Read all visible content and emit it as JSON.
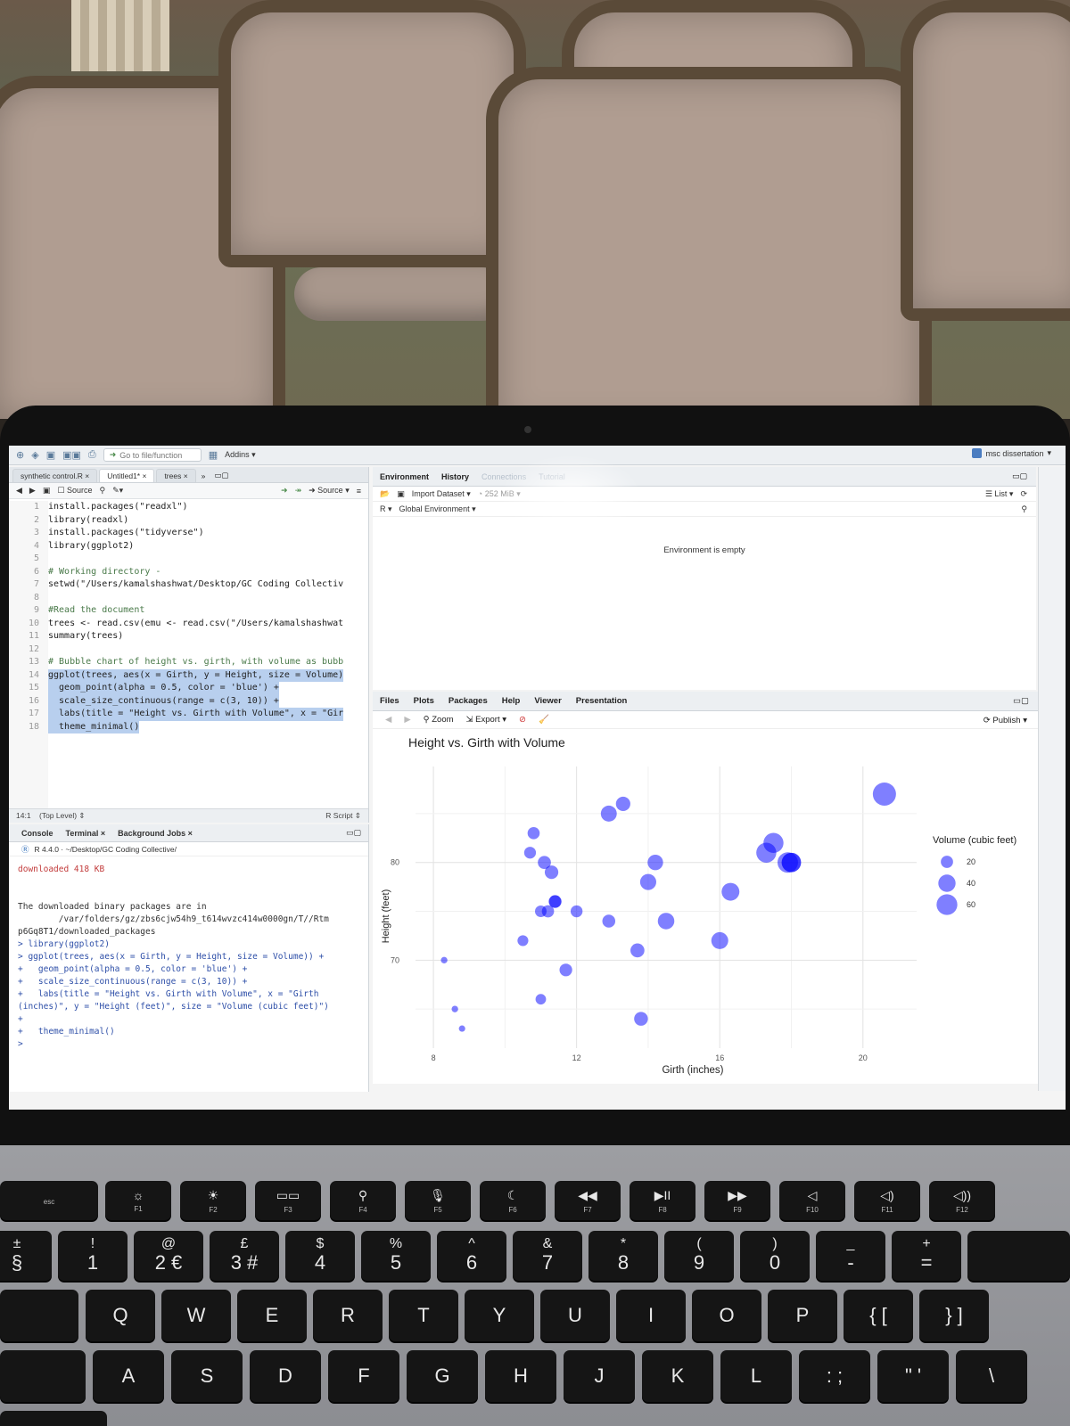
{
  "toolbar": {
    "goto_placeholder": "Go to file/function",
    "addins": "Addins"
  },
  "project": {
    "name": "msc dissertation"
  },
  "source": {
    "tabs": [
      "synthetic control.R",
      "Untitled1*",
      "trees"
    ],
    "source_on_save": "Source",
    "run_source": "Source",
    "lines": [
      {
        "n": "1",
        "text": "install.packages(\"readxl\")",
        "kind": "code"
      },
      {
        "n": "2",
        "text": "library(readxl)",
        "kind": "code"
      },
      {
        "n": "3",
        "text": "install.packages(\"tidyverse\")",
        "kind": "code"
      },
      {
        "n": "4",
        "text": "library(ggplot2)",
        "kind": "code"
      },
      {
        "n": "5",
        "text": "",
        "kind": "code"
      },
      {
        "n": "6",
        "text": "# Working directory -",
        "kind": "comment"
      },
      {
        "n": "7",
        "text": "setwd(\"/Users/kamalshashwat/Desktop/GC Coding Collectiv",
        "kind": "code"
      },
      {
        "n": "8",
        "text": "",
        "kind": "code"
      },
      {
        "n": "9",
        "text": "#Read the document",
        "kind": "comment"
      },
      {
        "n": "10",
        "text": "trees <- read.csv(emu <- read.csv(\"/Users/kamalshashwat",
        "kind": "code"
      },
      {
        "n": "11",
        "text": "summary(trees)",
        "kind": "code"
      },
      {
        "n": "12",
        "text": "",
        "kind": "code"
      },
      {
        "n": "13",
        "text": "# Bubble chart of height vs. girth, with volume as bubb",
        "kind": "comment"
      },
      {
        "n": "14",
        "text": "ggplot(trees, aes(x = Girth, y = Height, size = Volume)",
        "kind": "selected"
      },
      {
        "n": "15",
        "text": "  geom_point(alpha = 0.5, color = 'blue') +",
        "kind": "selected"
      },
      {
        "n": "16",
        "text": "  scale_size_continuous(range = c(3, 10)) +",
        "kind": "selected"
      },
      {
        "n": "17",
        "text": "  labs(title = \"Height vs. Girth with Volume\", x = \"Gir",
        "kind": "selected"
      },
      {
        "n": "18",
        "text": "  theme_minimal()",
        "kind": "selected"
      }
    ],
    "status_pos": "14:1",
    "status_scope": "(Top Level)",
    "status_type": "R Script"
  },
  "console": {
    "tabs": [
      "Console",
      "Terminal",
      "Background Jobs"
    ],
    "path": "R 4.4.0 · ~/Desktop/GC Coding Collective/",
    "lines": [
      {
        "text": "downloaded 418 KB",
        "kind": "red"
      },
      {
        "text": "",
        "kind": "plain"
      },
      {
        "text": "",
        "kind": "plain"
      },
      {
        "text": "The downloaded binary packages are in",
        "kind": "plain"
      },
      {
        "text": "        /var/folders/gz/zbs6cjw54h9_t614wvzc414w0000gn/T//Rtm",
        "kind": "plain"
      },
      {
        "text": "p6Gq8T1/downloaded_packages",
        "kind": "plain"
      },
      {
        "text": "> library(ggplot2)",
        "kind": "blue"
      },
      {
        "text": "> ggplot(trees, aes(x = Girth, y = Height, size = Volume)) +",
        "kind": "blue"
      },
      {
        "text": "+   geom_point(alpha = 0.5, color = 'blue') +",
        "kind": "blue"
      },
      {
        "text": "+   scale_size_continuous(range = c(3, 10)) +",
        "kind": "blue"
      },
      {
        "text": "+   labs(title = \"Height vs. Girth with Volume\", x = \"Girth",
        "kind": "blue"
      },
      {
        "text": "(inches)\", y = \"Height (feet)\", size = \"Volume (cubic feet)\")",
        "kind": "blue"
      },
      {
        "text": "+",
        "kind": "blue"
      },
      {
        "text": "+   theme_minimal()",
        "kind": "blue"
      },
      {
        "text": ">",
        "kind": "blue"
      }
    ]
  },
  "environment": {
    "tabs": [
      "Environment",
      "History",
      "Connections",
      "Tutorial"
    ],
    "import_dataset": "Import Dataset",
    "memory": "252 MiB",
    "language": "R",
    "scope": "Global Environment",
    "empty_msg": "Environment is empty",
    "list_view": "List"
  },
  "plots": {
    "tabs": [
      "Files",
      "Plots",
      "Packages",
      "Help",
      "Viewer",
      "Presentation"
    ],
    "zoom": "Zoom",
    "export": "Export",
    "publish": "Publish"
  },
  "chart_data": {
    "type": "scatter",
    "title": "Height vs. Girth with Volume",
    "xlabel": "Girth (inches)",
    "ylabel": "Height (feet)",
    "xlim": [
      7.5,
      21.5
    ],
    "ylim": [
      61,
      88
    ],
    "xticks": [
      8,
      12,
      16,
      20
    ],
    "yticks": [
      70,
      80
    ],
    "grid": true,
    "color": "#0000ff",
    "alpha": 0.5,
    "legend_title": "Volume (cubic feet)",
    "legend_values": [
      20,
      40,
      60
    ],
    "legend_position": "right",
    "points": [
      {
        "x": 8.3,
        "y": 70,
        "size": 10.3
      },
      {
        "x": 8.6,
        "y": 65,
        "size": 10.3
      },
      {
        "x": 8.8,
        "y": 63,
        "size": 10.2
      },
      {
        "x": 10.5,
        "y": 72,
        "size": 16.4
      },
      {
        "x": 10.7,
        "y": 81,
        "size": 18.8
      },
      {
        "x": 10.8,
        "y": 83,
        "size": 19.7
      },
      {
        "x": 11.0,
        "y": 66,
        "size": 15.6
      },
      {
        "x": 11.0,
        "y": 75,
        "size": 18.2
      },
      {
        "x": 11.1,
        "y": 80,
        "size": 22.6
      },
      {
        "x": 11.2,
        "y": 75,
        "size": 19.9
      },
      {
        "x": 11.3,
        "y": 79,
        "size": 24.2
      },
      {
        "x": 11.4,
        "y": 76,
        "size": 21.0
      },
      {
        "x": 11.4,
        "y": 76,
        "size": 21.4
      },
      {
        "x": 11.7,
        "y": 69,
        "size": 21.3
      },
      {
        "x": 12.0,
        "y": 75,
        "size": 19.1
      },
      {
        "x": 12.9,
        "y": 74,
        "size": 22.2
      },
      {
        "x": 12.9,
        "y": 85,
        "size": 33.8
      },
      {
        "x": 13.3,
        "y": 86,
        "size": 27.4
      },
      {
        "x": 13.7,
        "y": 71,
        "size": 25.7
      },
      {
        "x": 13.8,
        "y": 64,
        "size": 24.9
      },
      {
        "x": 14.0,
        "y": 78,
        "size": 34.5
      },
      {
        "x": 14.2,
        "y": 80,
        "size": 31.7
      },
      {
        "x": 14.5,
        "y": 74,
        "size": 36.3
      },
      {
        "x": 16.0,
        "y": 72,
        "size": 38.3
      },
      {
        "x": 16.3,
        "y": 77,
        "size": 42.6
      },
      {
        "x": 17.3,
        "y": 81,
        "size": 55.4
      },
      {
        "x": 17.5,
        "y": 82,
        "size": 55.7
      },
      {
        "x": 17.9,
        "y": 80,
        "size": 58.3
      },
      {
        "x": 18.0,
        "y": 80,
        "size": 51.5
      },
      {
        "x": 18.0,
        "y": 80,
        "size": 51.0
      },
      {
        "x": 20.6,
        "y": 87,
        "size": 77.0
      }
    ]
  },
  "keyboard": {
    "fn_row": [
      {
        "label": "esc",
        "glyph": ""
      },
      {
        "label": "F1",
        "glyph": "☼"
      },
      {
        "label": "F2",
        "glyph": "☀"
      },
      {
        "label": "F3",
        "glyph": "▭▭"
      },
      {
        "label": "F4",
        "glyph": "⚲"
      },
      {
        "label": "F5",
        "glyph": "🎙"
      },
      {
        "label": "F6",
        "glyph": "☾"
      },
      {
        "label": "F7",
        "glyph": "◀◀"
      },
      {
        "label": "F8",
        "glyph": "▶II"
      },
      {
        "label": "F9",
        "glyph": "▶▶"
      },
      {
        "label": "F10",
        "glyph": "◁"
      },
      {
        "label": "F11",
        "glyph": "◁)"
      },
      {
        "label": "F12",
        "glyph": "◁))"
      }
    ],
    "num_row": [
      {
        "top": "±",
        "main": "§"
      },
      {
        "top": "!",
        "main": "1"
      },
      {
        "top": "@",
        "main": "2 €"
      },
      {
        "top": "£",
        "main": "3 #"
      },
      {
        "top": "$",
        "main": "4"
      },
      {
        "top": "%",
        "main": "5"
      },
      {
        "top": "^",
        "main": "6"
      },
      {
        "top": "&",
        "main": "7"
      },
      {
        "top": "*",
        "main": "8"
      },
      {
        "top": "(",
        "main": "9"
      },
      {
        "top": ")",
        "main": "0"
      },
      {
        "top": "_",
        "main": "-"
      },
      {
        "top": "+",
        "main": "="
      }
    ],
    "qwerty_row": [
      "Q",
      "W",
      "E",
      "R",
      "T",
      "Y",
      "U",
      "I",
      "O",
      "P",
      "{ [",
      "} ]"
    ],
    "home_row": [
      "A",
      "S",
      "D",
      "F",
      "G",
      "H",
      "J",
      "K",
      "L",
      ": ;",
      "\" '",
      "\\"
    ]
  }
}
